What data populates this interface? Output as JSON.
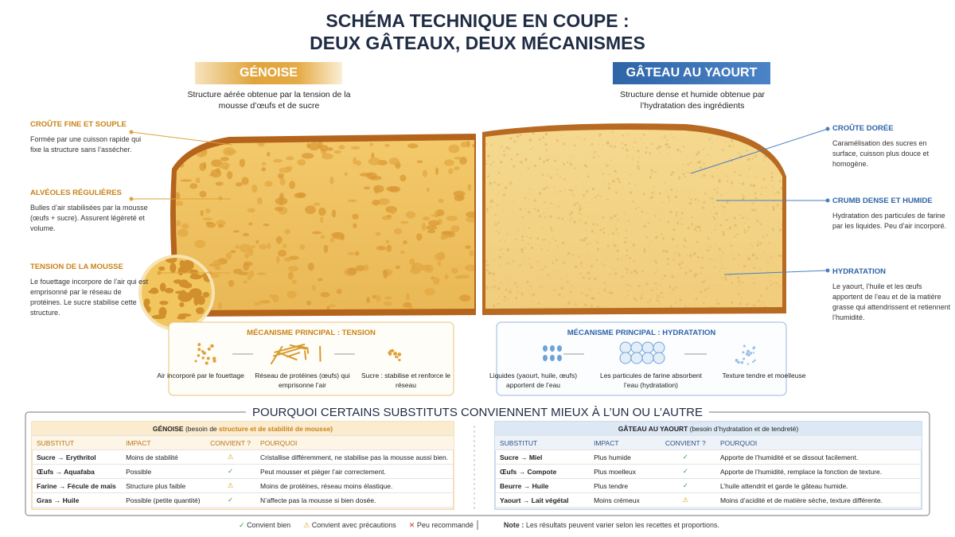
{
  "header": {
    "title": [
      "SCHÉMA TECHNIQUE EN COUPE :",
      "DEUX GÂTEAUX, DEUX MÉCANISMES"
    ]
  },
  "left": {
    "name": "GÉNOISE",
    "subtitle": "Structure aérée obtenue par la tension de la mousse d’œufs et de sucre",
    "annotations": [
      {
        "title": "CROÛTE FINE ET SOUPLE",
        "text": "Formée par une cuisson rapide qui fixe la structure sans l’assécher."
      },
      {
        "title": "ALVÉOLES RÉGULIÈRES",
        "text": "Bulles d’air stabilisées par la mousse (œufs + sucre). Assurent légèreté et volume."
      },
      {
        "title": "TENSION DE LA MOUSSE",
        "text": "Le fouettage incorpore de l’air qui est emprisonné par le réseau de protéines. Le sucre stabilise cette structure."
      }
    ],
    "mechanism": {
      "title": "MÉCANISME PRINCIPAL : TENSION",
      "steps": [
        "Air incorporé par le fouettage",
        "Réseau de protéines (œufs) qui emprisonne l’air",
        "Sucre : stabilise et renforce le réseau"
      ]
    }
  },
  "right": {
    "name": "GÂTEAU AU YAOURT",
    "subtitle": "Structure dense et humide obtenue par l’hydratation des ingrédients",
    "annotations": [
      {
        "title": "CROÛTE DORÉE",
        "text": "Caramélisation des sucres en surface, cuisson plus douce et homogène."
      },
      {
        "title": "CRUMB DENSE ET HUMIDE",
        "text": "Hydratation des particules de farine par les liquides. Peu d’air incorporé."
      },
      {
        "title": "HYDRATATION",
        "text": "Le yaourt, l’huile et les œufs apportent de l’eau et de la matière grasse qui attendrissent et retiennent l’humidité."
      }
    ],
    "mechanism": {
      "title": "MÉCANISME PRINCIPAL : HYDRATATION",
      "steps": [
        "Liquides (yaourt, huile, œufs) apportent de l’eau",
        "Les particules de farine absorbent l’eau (hydratation)",
        "Texture tendre et moelleuse"
      ]
    }
  },
  "substitutes": {
    "title": "POURQUOI CERTAINS SUBSTITUTS CONVIENNENT MIEUX À L’UN OU L’AUTRE",
    "columns": [
      "SUBSTITUT",
      "IMPACT",
      "CONVIENT ?",
      "POURQUOI"
    ],
    "tables": [
      {
        "caption": [
          "GÉNOISE",
          " (besoin de ",
          "structure",
          " et de stabilité de mousse)"
        ],
        "rows": [
          [
            "Sucre → Erythritol",
            "Moins de stabilité",
            "⚠",
            "Cristallise différemment, ne stabilise pas la mousse aussi bien."
          ],
          [
            "Œufs → Aquafaba",
            "Possible",
            "✓",
            "Peut mousser et piéger l’air correctement."
          ],
          [
            "Farine → Fécule de maïs",
            "Structure plus faible",
            "⚠",
            "Moins de protéines, réseau moins élastique."
          ],
          [
            "Gras → Huile",
            "Possible (petite quantité)",
            "✓",
            "N’affecte pas la mousse si bien dosée."
          ]
        ]
      },
      {
        "caption": [
          "GÂTEAU AU YAOURT",
          " (besoin d’hydratation et de tendreté)"
        ],
        "rows": [
          [
            "Sucre → Miel",
            "Plus humide",
            "✓",
            "Apporte de l’humidité et se dissout facilement."
          ],
          [
            "Œufs → Compote",
            "Plus moelleux",
            "✓",
            "Apporte de l’humidité, remplace la fonction de texture."
          ],
          [
            "Beurre → Huile",
            "Plus tendre",
            "✓",
            "L’huile attendrit et garde le gâteau humide."
          ],
          [
            "Yaourt → Lait végétal",
            "Moins crémeux",
            "⚠",
            "Moins d’acidité et de matière sèche, texture différente."
          ]
        ]
      }
    ]
  },
  "legend": {
    "items": [
      {
        "icon": "✓",
        "label": "Convient bien"
      },
      {
        "icon": "⚠",
        "label": "Convient avec précautions"
      },
      {
        "icon": "✕",
        "label": "Peu recommandé"
      }
    ],
    "note_label": "Note :",
    "note": " Les résultats peuvent varier selon les recettes et proportions."
  }
}
